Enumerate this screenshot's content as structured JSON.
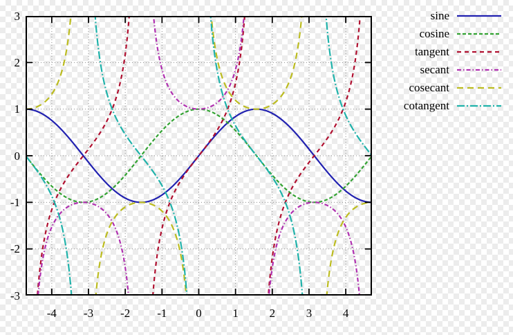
{
  "figure": {
    "background": "transparency-checkerboard",
    "checker_colors": [
      "#ffffff",
      "#ececec"
    ],
    "text_color": "#000000",
    "border_color": "#000000",
    "grid_color": "#8c8c8c"
  },
  "chart_data": {
    "type": "line",
    "title": "",
    "xlabel": "",
    "ylabel": "",
    "x_range": [
      -4.7124,
      4.7124
    ],
    "y_range": [
      -3,
      3
    ],
    "x_ticks": [
      "-4",
      "-3",
      "-2",
      "-1",
      "0",
      "1",
      "2",
      "3",
      "4"
    ],
    "x_tick_values": [
      -4,
      -3,
      -2,
      -1,
      0,
      1,
      2,
      3,
      4
    ],
    "y_ticks": [
      "3",
      "2",
      "1",
      "0",
      "-1",
      "-2",
      "-3"
    ],
    "y_tick_values": [
      3,
      2,
      1,
      0,
      -1,
      -2,
      -3
    ],
    "grid": true,
    "grid_style": "dotted",
    "ticks_mirrored": true,
    "legend_position": "outside-top-right",
    "series": [
      {
        "name": "sine",
        "fn": "sin",
        "color": "#2121b0",
        "dash": "solid"
      },
      {
        "name": "cosine",
        "fn": "cos",
        "color": "#33a333",
        "dash": "5 3"
      },
      {
        "name": "tangent",
        "fn": "tan",
        "color": "#b01030",
        "dash": "6 5"
      },
      {
        "name": "secant",
        "fn": "sec",
        "color": "#b030b0",
        "dash": "6 3 1.5 3"
      },
      {
        "name": "cosecant",
        "fn": "csc",
        "color": "#bcbc20",
        "dash": "9 6"
      },
      {
        "name": "cotangent",
        "fn": "cot",
        "color": "#20b2aa",
        "dash": "11 3 2 3"
      }
    ]
  }
}
